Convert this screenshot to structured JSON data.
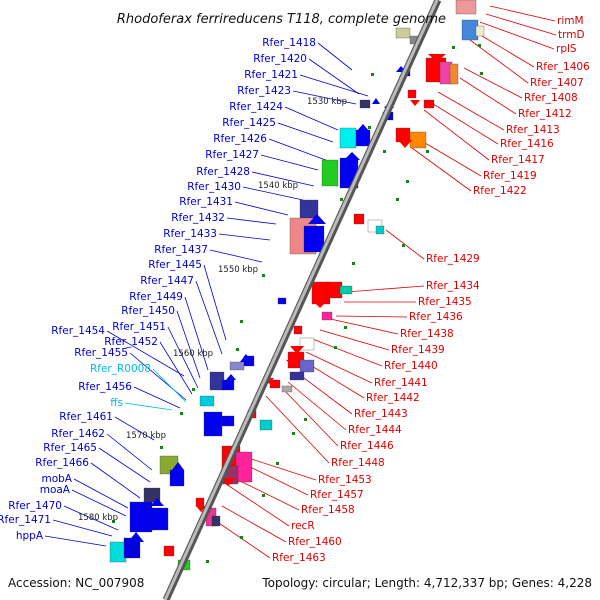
{
  "title": "Rhodoferax ferrireducens T118, complete genome",
  "footer": {
    "accession": "Accession: NC_007908",
    "topology": "Topology: circular; Length: 4,712,337 bp; Genes: 4,228"
  },
  "colors": {
    "plus_strand_label": "#0000cc",
    "minus_strand_label": "#dd0000",
    "rna_label": "#00bbdd",
    "backbone": "#888888"
  },
  "kbp_marks": [
    "1530 kbp",
    "1540 kbp",
    "1550 kbp",
    "1560 kbp",
    "1570 kbp",
    "1580 kbp"
  ],
  "left_labels": [
    {
      "text": "Rfer_1418",
      "type": "gene"
    },
    {
      "text": "Rfer_1420",
      "type": "gene"
    },
    {
      "text": "Rfer_1421",
      "type": "gene"
    },
    {
      "text": "Rfer_1423",
      "type": "gene"
    },
    {
      "text": "Rfer_1424",
      "type": "gene"
    },
    {
      "text": "Rfer_1425",
      "type": "gene"
    },
    {
      "text": "Rfer_1426",
      "type": "gene"
    },
    {
      "text": "Rfer_1427",
      "type": "gene"
    },
    {
      "text": "Rfer_1428",
      "type": "gene"
    },
    {
      "text": "Rfer_1430",
      "type": "gene"
    },
    {
      "text": "Rfer_1431",
      "type": "gene"
    },
    {
      "text": "Rfer_1432",
      "type": "gene"
    },
    {
      "text": "Rfer_1433",
      "type": "gene"
    },
    {
      "text": "Rfer_1437",
      "type": "gene"
    },
    {
      "text": "Rfer_1445",
      "type": "gene"
    },
    {
      "text": "Rfer_1447",
      "type": "gene"
    },
    {
      "text": "Rfer_1449",
      "type": "gene"
    },
    {
      "text": "Rfer_1450",
      "type": "gene"
    },
    {
      "text": "Rfer_1451",
      "type": "gene"
    },
    {
      "text": "Rfer_1454",
      "type": "gene"
    },
    {
      "text": "Rfer_1452",
      "type": "gene"
    },
    {
      "text": "Rfer_1455",
      "type": "gene"
    },
    {
      "text": "Rfer_R0008",
      "type": "rna"
    },
    {
      "text": "Rfer_1456",
      "type": "gene"
    },
    {
      "text": "ffs",
      "type": "rna"
    },
    {
      "text": "Rfer_1461",
      "type": "gene"
    },
    {
      "text": "Rfer_1462",
      "type": "gene"
    },
    {
      "text": "Rfer_1465",
      "type": "gene"
    },
    {
      "text": "Rfer_1466",
      "type": "gene"
    },
    {
      "text": "mobA",
      "type": "gene"
    },
    {
      "text": "moaA",
      "type": "gene"
    },
    {
      "text": "Rfer_1470",
      "type": "gene"
    },
    {
      "text": "Rfer_1471",
      "type": "gene"
    },
    {
      "text": "hppA",
      "type": "gene"
    }
  ],
  "right_labels": [
    "rimM",
    "trmD",
    "rplS",
    "Rfer_1406",
    "Rfer_1407",
    "Rfer_1408",
    "Rfer_1412",
    "Rfer_1413",
    "Rfer_1416",
    "Rfer_1417",
    "Rfer_1419",
    "Rfer_1422",
    "Rfer_1429",
    "Rfer_1434",
    "Rfer_1435",
    "Rfer_1436",
    "Rfer_1438",
    "Rfer_1439",
    "Rfer_1440",
    "Rfer_1441",
    "Rfer_1442",
    "Rfer_1443",
    "Rfer_1444",
    "Rfer_1446",
    "Rfer_1448",
    "Rfer_1453",
    "Rfer_1457",
    "Rfer_1458",
    "recR",
    "Rfer_1460",
    "Rfer_1463"
  ]
}
